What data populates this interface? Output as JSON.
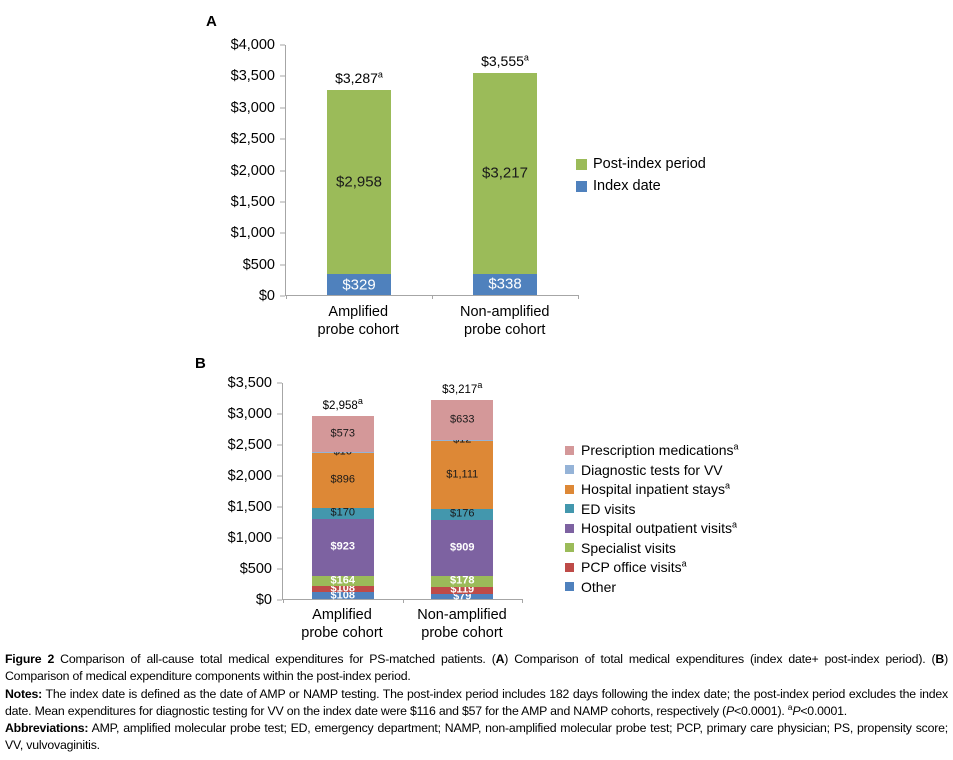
{
  "chart_data": [
    {
      "panel": "A",
      "type": "bar",
      "stacked": true,
      "ymax": 4000,
      "grid": false,
      "legend_position": "right",
      "y_ticks": [
        {
          "label": "$4,000",
          "value": 4000
        },
        {
          "label": "$3,500",
          "value": 3500
        },
        {
          "label": "$3,000",
          "value": 3000
        },
        {
          "label": "$2,500",
          "value": 2500
        },
        {
          "label": "$2,000",
          "value": 2000
        },
        {
          "label": "$1,500",
          "value": 1500
        },
        {
          "label": "$1,000",
          "value": 1000
        },
        {
          "label": "$500",
          "value": 500
        },
        {
          "label": "$0",
          "value": 0
        }
      ],
      "categories": [
        [
          "Amplified",
          "probe cohort"
        ],
        [
          "Non-amplified",
          "probe cohort"
        ]
      ],
      "series": [
        {
          "name": "Index date",
          "color": "#4f81bd",
          "text_color": "#ffffff",
          "bold": false,
          "values": [
            329,
            338
          ],
          "labels": [
            "$329",
            "$338"
          ]
        },
        {
          "name": "Post-index period",
          "color": "#9bbb59",
          "text_color": "#1a1a1a",
          "bold": false,
          "values": [
            2958,
            3217
          ],
          "labels": [
            "$2,958",
            "$3,217"
          ]
        }
      ],
      "totals": {
        "values": [
          3287,
          3555
        ],
        "labels": [
          "$3,287",
          "$3,555"
        ],
        "sup": "a"
      },
      "legend": [
        {
          "label": "Post-index period",
          "sup": "",
          "color": "#9bbb59"
        },
        {
          "label": "Index date",
          "sup": "",
          "color": "#4f81bd"
        }
      ]
    },
    {
      "panel": "B",
      "type": "bar",
      "stacked": true,
      "ymax": 3500,
      "grid": false,
      "legend_position": "right",
      "y_ticks": [
        {
          "label": "$3,500",
          "value": 3500
        },
        {
          "label": "$3,000",
          "value": 3000
        },
        {
          "label": "$2,500",
          "value": 2500
        },
        {
          "label": "$2,000",
          "value": 2000
        },
        {
          "label": "$1,500",
          "value": 1500
        },
        {
          "label": "$1,000",
          "value": 1000
        },
        {
          "label": "$500",
          "value": 500
        },
        {
          "label": "$0",
          "value": 0
        }
      ],
      "categories": [
        [
          "Amplified",
          "probe cohort"
        ],
        [
          "Non-amplified",
          "probe cohort"
        ]
      ],
      "series": [
        {
          "name": "Other",
          "color": "#4f81bd",
          "text_color": "#ffffff",
          "bold": true,
          "values": [
            108,
            79
          ],
          "labels": [
            "$108",
            "$79"
          ]
        },
        {
          "name": "PCP office visits",
          "sup": "a",
          "color": "#be4b48",
          "text_color": "#ffffff",
          "bold": true,
          "values": [
            108,
            119
          ],
          "labels": [
            "$108",
            "$119"
          ]
        },
        {
          "name": "Specialist visits",
          "color": "#9bbb59",
          "text_color": "#ffffff",
          "bold": true,
          "values": [
            164,
            178
          ],
          "labels": [
            "$164",
            "$178"
          ]
        },
        {
          "name": "Hospital outpatient visits",
          "sup": "a",
          "color": "#7d62a1",
          "text_color": "#ffffff",
          "bold": true,
          "values": [
            923,
            909
          ],
          "labels": [
            "$923",
            "$909"
          ]
        },
        {
          "name": "ED visits",
          "color": "#4397ad",
          "text_color": "#1a1a1a",
          "bold": false,
          "values": [
            170,
            176
          ],
          "labels": [
            "$170",
            "$176"
          ]
        },
        {
          "name": "Hospital inpatient stays",
          "sup": "a",
          "color": "#dd8836",
          "text_color": "#1a1a1a",
          "bold": false,
          "values": [
            896,
            1111
          ],
          "labels": [
            "$896",
            "$1,111"
          ]
        },
        {
          "name": "Diagnostic tests for VV",
          "color": "#95b3d7",
          "text_color": "#1a1a1a",
          "bold": false,
          "values": [
            16,
            12
          ],
          "labels": [
            "$16",
            "$12"
          ]
        },
        {
          "name": "Prescription medications",
          "sup": "a",
          "color": "#d49899",
          "text_color": "#1a1a1a",
          "bold": false,
          "values": [
            573,
            633
          ],
          "labels": [
            "$573",
            "$633"
          ]
        }
      ],
      "totals": {
        "values": [
          2958,
          3217
        ],
        "labels": [
          "$2,958",
          "$3,217"
        ],
        "sup": "a"
      },
      "legend": [
        {
          "label": "Prescription medications",
          "sup": "a",
          "color": "#d49899"
        },
        {
          "label": "Diagnostic tests for VV",
          "sup": "",
          "color": "#95b3d7"
        },
        {
          "label": "Hospital inpatient stays",
          "sup": "a",
          "color": "#dd8836"
        },
        {
          "label": "ED visits",
          "sup": "",
          "color": "#4397ad"
        },
        {
          "label": "Hospital outpatient visits",
          "sup": "a",
          "color": "#7d62a1"
        },
        {
          "label": "Specialist visits",
          "sup": "",
          "color": "#9bbb59"
        },
        {
          "label": "PCP office visits",
          "sup": "a",
          "color": "#be4b48"
        },
        {
          "label": "Other",
          "sup": "",
          "color": "#4f81bd"
        }
      ]
    }
  ],
  "caption": {
    "figure": [
      {
        "b": "Figure 2"
      },
      {
        "t": " Comparison of all-cause total medical expenditures for PS-matched patients. ("
      },
      {
        "b": "A"
      },
      {
        "t": ") Comparison of total medical expenditures (index date+ post-index period). ("
      },
      {
        "b": "B"
      },
      {
        "t": ") Comparison of medical expenditure components within the post-index period."
      }
    ],
    "notes": [
      {
        "b": "Notes:"
      },
      {
        "t": " The index date is defined as the date of AMP or NAMP testing. The post-index period includes 182 days following the index date; the post-index period excludes the index date. Mean expenditures for diagnostic testing for VV on the index date were $116 and $57 for the AMP and NAMP cohorts, respectively ("
      },
      {
        "i": "P"
      },
      {
        "t": "<0.0001). "
      },
      {
        "sup": "a"
      },
      {
        "i": "P"
      },
      {
        "t": "<0.0001."
      }
    ],
    "abbreviations": [
      {
        "b": "Abbreviations:"
      },
      {
        "t": " AMP, amplified molecular probe test; ED, emergency department; NAMP, non-amplified molecular probe test; PCP, primary care physician; PS, propensity score; VV, vulvovaginitis."
      }
    ]
  },
  "colors": {
    "axis": "#a6a6a6",
    "post_index_green": "#9bbb59",
    "index_blue": "#4f81bd",
    "prescription_pink": "#d49899",
    "diagnostic_light_blue": "#95b3d7",
    "inpatient_orange": "#dd8836",
    "ed_teal": "#4397ad",
    "outpatient_purple": "#7d62a1",
    "pcp_red": "#be4b48"
  }
}
